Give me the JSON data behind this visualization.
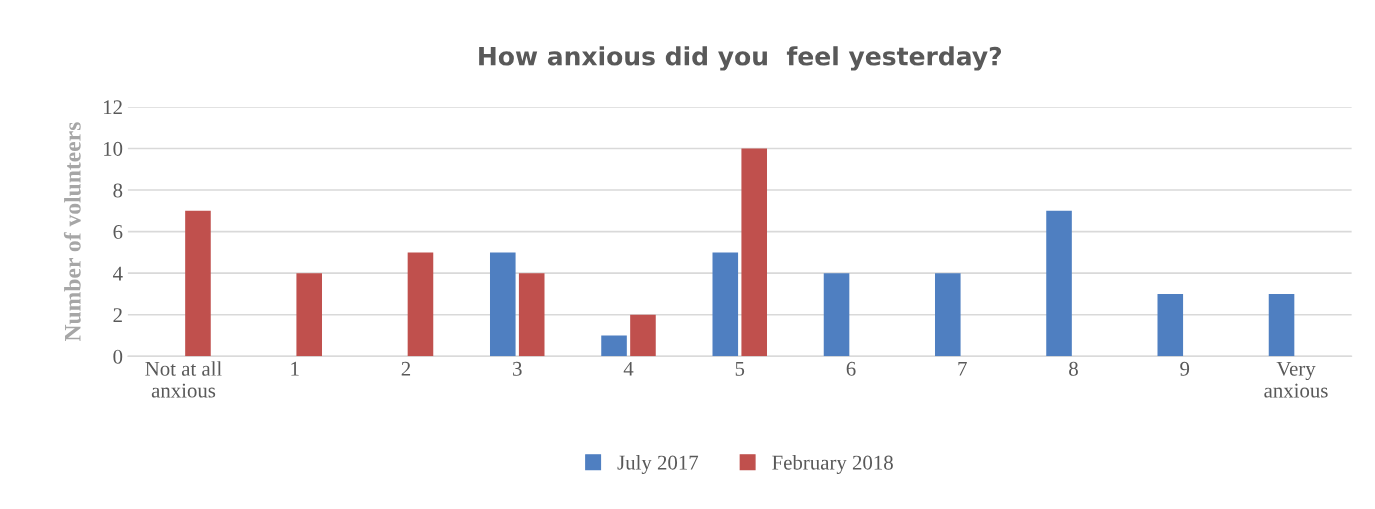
{
  "chart_data": {
    "type": "bar",
    "title": "How anxious did you  feel yesterday?",
    "ylabel": "Number of volunteers",
    "categories": [
      "Not at all\nanxious",
      "1",
      "2",
      "3",
      "4",
      "5",
      "6",
      "7",
      "8",
      "9",
      "Very\nanxious"
    ],
    "series": [
      {
        "name": "July 2017",
        "color": "#4f7fc1",
        "values": [
          0,
          0,
          0,
          5,
          1,
          5,
          4,
          4,
          7,
          3,
          3
        ]
      },
      {
        "name": "February 2018",
        "color": "#c0504d",
        "values": [
          7,
          4,
          5,
          4,
          2,
          10,
          0,
          0,
          0,
          0,
          0
        ]
      }
    ],
    "ylim": [
      0,
      12
    ],
    "yticks": [
      0,
      2,
      4,
      6,
      8,
      10,
      12
    ],
    "grid": "y",
    "legend": "bottom"
  }
}
